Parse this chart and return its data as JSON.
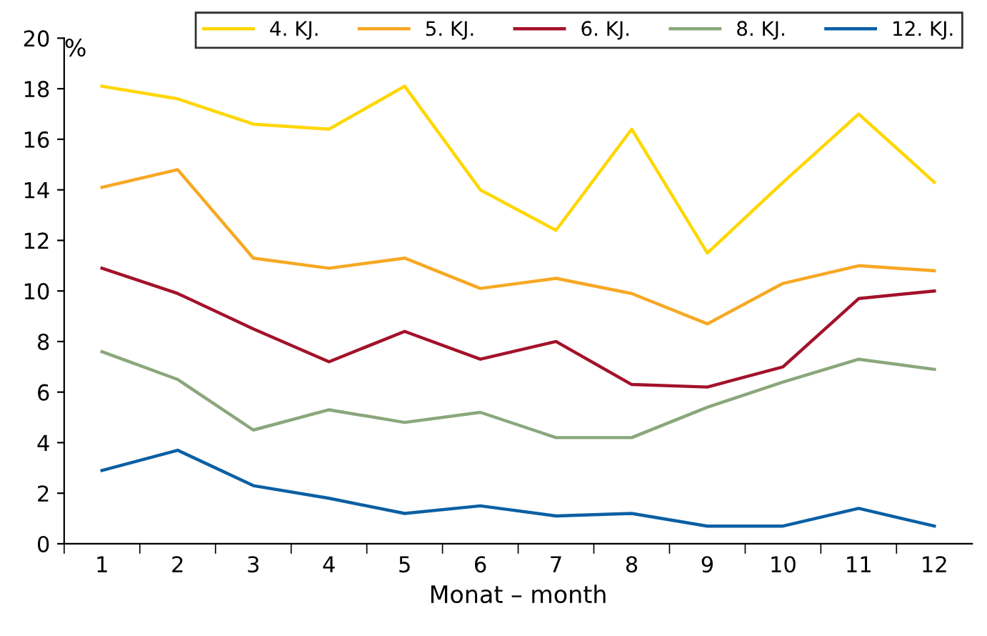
{
  "chart_data": {
    "type": "line",
    "ylabel": "%",
    "xlabel": "Monat – month",
    "categories": [
      "1",
      "2",
      "3",
      "4",
      "5",
      "6",
      "7",
      "8",
      "9",
      "10",
      "11",
      "12"
    ],
    "series": [
      {
        "name": "4. KJ.",
        "color": "#ffd700",
        "values": [
          18.1,
          17.6,
          16.6,
          16.4,
          18.1,
          14.0,
          12.4,
          16.4,
          11.5,
          14.3,
          17.0,
          14.3
        ]
      },
      {
        "name": "5. KJ.",
        "color": "#f7a823",
        "values": [
          14.1,
          14.8,
          11.3,
          10.9,
          11.3,
          10.1,
          10.5,
          9.9,
          8.7,
          10.3,
          11.0,
          10.8
        ]
      },
      {
        "name": "6. KJ.",
        "color": "#a3112a",
        "values": [
          10.9,
          9.9,
          8.5,
          7.2,
          8.4,
          7.3,
          8.0,
          6.3,
          6.2,
          7.0,
          9.7,
          10.0
        ]
      },
      {
        "name": "8. KJ.",
        "color": "#8aa77b",
        "values": [
          7.6,
          6.5,
          4.5,
          5.3,
          4.8,
          5.2,
          4.2,
          4.2,
          5.4,
          6.4,
          7.3,
          6.9
        ]
      },
      {
        "name": "12. KJ.",
        "color": "#0a5fa3",
        "values": [
          2.9,
          3.7,
          2.3,
          1.8,
          1.2,
          1.5,
          1.1,
          1.2,
          0.7,
          0.7,
          1.4,
          0.7
        ]
      }
    ],
    "ylim": [
      0,
      20
    ],
    "yticks": [
      0,
      2,
      4,
      6,
      8,
      10,
      12,
      14,
      16,
      18,
      20
    ],
    "grid": false,
    "legend": "top right"
  }
}
